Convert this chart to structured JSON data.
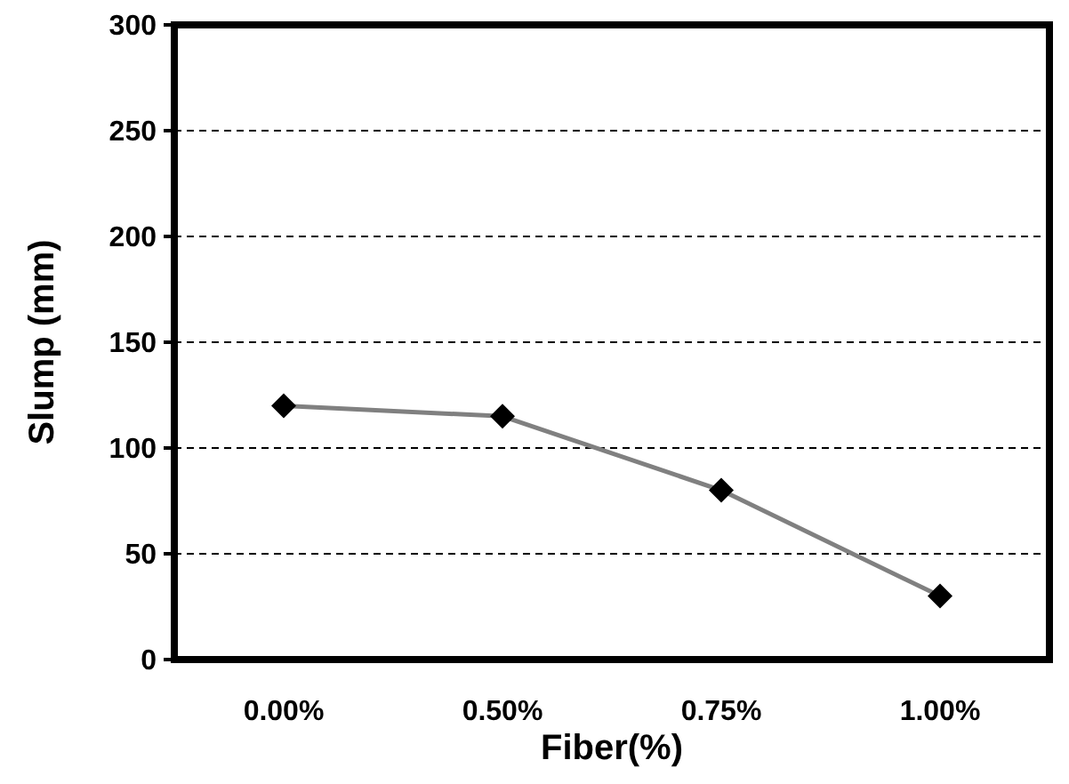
{
  "chart_data": {
    "type": "line",
    "xlabel": "Fiber(%)",
    "ylabel": "Slump (mm)",
    "categories": [
      "0.00%",
      "0.50%",
      "0.75%",
      "1.00%"
    ],
    "series": [
      {
        "color": "#808080",
        "values": [
          120,
          115,
          80,
          30
        ]
      }
    ],
    "ylim": [
      0,
      300
    ],
    "yticks": [
      0,
      50,
      100,
      150,
      200,
      250,
      300
    ],
    "grid": "y",
    "marker": "diamond",
    "line_style": "solid"
  }
}
